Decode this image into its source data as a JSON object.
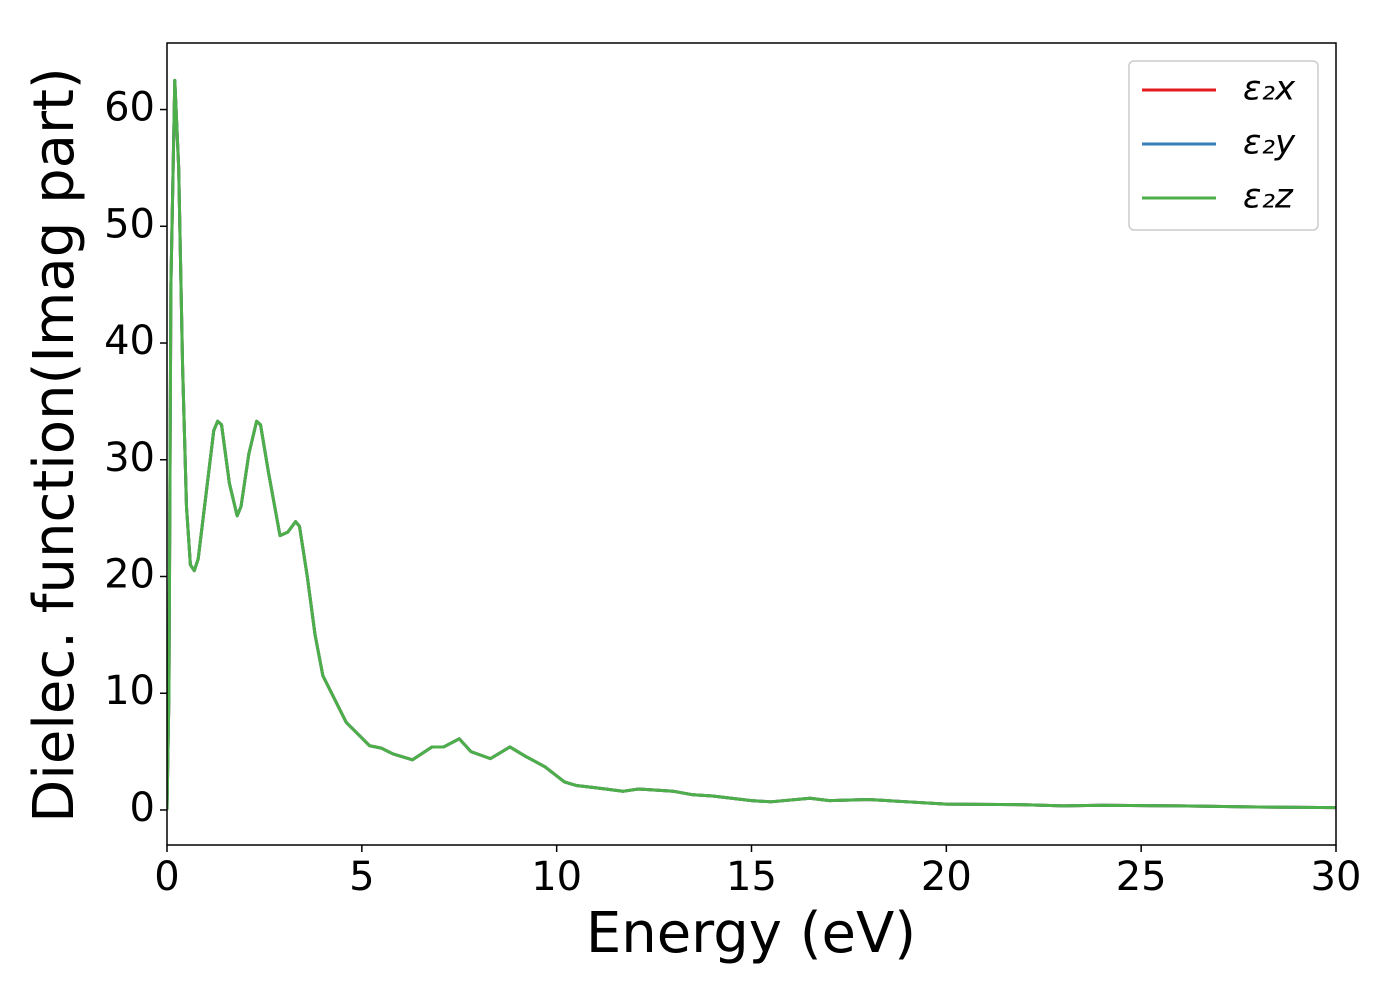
{
  "chart_data": {
    "type": "line",
    "xlabel": "Energy (eV)",
    "ylabel": "Dielec. function(Imag part)",
    "x": [
      0,
      0.05,
      0.1,
      0.2,
      0.3,
      0.4,
      0.5,
      0.6,
      0.7,
      0.8,
      1.0,
      1.2,
      1.3,
      1.4,
      1.6,
      1.8,
      1.9,
      2.1,
      2.3,
      2.4,
      2.6,
      2.9,
      3.1,
      3.3,
      3.4,
      3.6,
      3.8,
      4.0,
      4.3,
      4.6,
      4.9,
      5.2,
      5.5,
      5.8,
      6.3,
      6.8,
      7.1,
      7.5,
      7.8,
      8.3,
      8.8,
      9.2,
      9.7,
      10.2,
      10.5,
      11,
      11.7,
      12.1,
      13,
      13.5,
      14,
      15,
      15.5,
      16.5,
      17,
      18,
      19,
      20,
      22,
      23,
      24,
      26,
      28,
      30
    ],
    "series": [
      {
        "name": "ε₂x",
        "color": "#e41a1c",
        "values": [
          0,
          10,
          45,
          62.5,
          55,
          38,
          26,
          21,
          20.5,
          21.5,
          27,
          32.5,
          33.3,
          33,
          28,
          25.2,
          26,
          30.5,
          33.3,
          33,
          29,
          23.5,
          23.8,
          24.7,
          24.3,
          20,
          15,
          11.5,
          9.5,
          7.5,
          6.5,
          5.5,
          5.3,
          4.8,
          4.3,
          5.4,
          5.4,
          6.1,
          5.0,
          4.4,
          5.4,
          4.6,
          3.7,
          2.4,
          2.1,
          1.9,
          1.6,
          1.8,
          1.6,
          1.3,
          1.2,
          0.8,
          0.7,
          1.0,
          0.8,
          0.9,
          0.7,
          0.5,
          0.45,
          0.35,
          0.4,
          0.35,
          0.25,
          0.2
        ]
      },
      {
        "name": "ε₂y",
        "color": "#377eb8",
        "values": [
          0,
          10,
          45,
          62.5,
          55,
          38,
          26,
          21,
          20.5,
          21.5,
          27,
          32.5,
          33.3,
          33,
          28,
          25.2,
          26,
          30.5,
          33.3,
          33,
          29,
          23.5,
          23.8,
          24.7,
          24.3,
          20,
          15,
          11.5,
          9.5,
          7.5,
          6.5,
          5.5,
          5.3,
          4.8,
          4.3,
          5.4,
          5.4,
          6.1,
          5.0,
          4.4,
          5.4,
          4.6,
          3.7,
          2.4,
          2.1,
          1.9,
          1.6,
          1.8,
          1.6,
          1.3,
          1.2,
          0.8,
          0.7,
          1.0,
          0.8,
          0.9,
          0.7,
          0.5,
          0.45,
          0.35,
          0.4,
          0.35,
          0.25,
          0.2
        ]
      },
      {
        "name": "ε₂z",
        "color": "#4daf4a",
        "values": [
          0,
          10,
          45,
          62.5,
          55,
          38,
          26,
          21,
          20.5,
          21.5,
          27,
          32.5,
          33.3,
          33,
          28,
          25.2,
          26,
          30.5,
          33.3,
          33,
          29,
          23.5,
          23.8,
          24.7,
          24.3,
          20,
          15,
          11.5,
          9.5,
          7.5,
          6.5,
          5.5,
          5.3,
          4.8,
          4.3,
          5.4,
          5.4,
          6.1,
          5.0,
          4.4,
          5.4,
          4.6,
          3.7,
          2.4,
          2.1,
          1.9,
          1.6,
          1.8,
          1.6,
          1.3,
          1.2,
          0.8,
          0.7,
          1.0,
          0.8,
          0.9,
          0.7,
          0.5,
          0.45,
          0.35,
          0.4,
          0.35,
          0.25,
          0.2
        ]
      }
    ],
    "xlim": [
      0,
      30
    ],
    "xticks": [
      0,
      5,
      10,
      15,
      20,
      25,
      30
    ],
    "ylim": [
      -3,
      65.7
    ],
    "yticks": [
      0,
      10,
      20,
      30,
      40,
      50,
      60
    ],
    "legend": "upper right",
    "grid": false
  }
}
